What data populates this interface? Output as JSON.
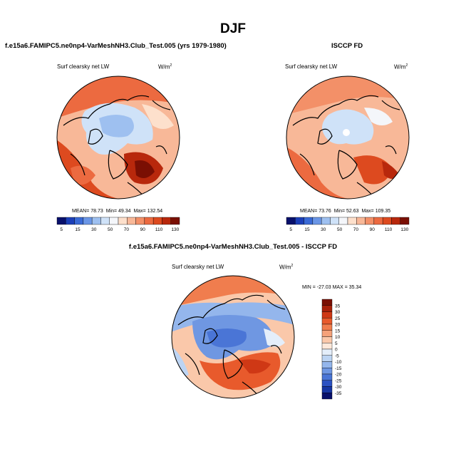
{
  "page": {
    "title": "DJF",
    "bottom_title": "f.e15a6.FAMIPC5.ne0np4-VarMeshNH3.Club_Test.005 - ISCCP FD"
  },
  "panels": {
    "model": {
      "header": "f.e15a6.FAMIPC5.ne0np4-VarMeshNH3.Club_Test.005 (yrs 1979-1980)",
      "field": "Surf clearsky net LW",
      "unit_base": "W/m",
      "unit_exp": "2",
      "stats": {
        "mean_label": "MEAN=",
        "mean": "78.73",
        "min_label": "Min=",
        "min": "49.34",
        "max_label": "Max=",
        "max": "132.54"
      }
    },
    "obs": {
      "header": "ISCCP FD",
      "field": "Surf clearsky net LW",
      "unit_base": "W/m",
      "unit_exp": "2",
      "stats": {
        "mean_label": "MEAN=",
        "mean": "73.76",
        "min_label": "Min=",
        "min": "52.63",
        "max_label": "Max=",
        "max": "109.35"
      }
    },
    "diff": {
      "field": "Surf clearsky net LW",
      "unit_base": "W/m",
      "unit_exp": "2",
      "minmax": "MIN = -27.03 MAX =  35.34"
    }
  },
  "colorbar_abs": {
    "labels": [
      "5",
      "15",
      "30",
      "50",
      "70",
      "90",
      "110",
      "130"
    ],
    "colors": [
      "#08106b",
      "#1c3fb8",
      "#3a6ad6",
      "#6b96e6",
      "#9ec0f0",
      "#cfe2f8",
      "#f4f6fa",
      "#fde0cc",
      "#f8b898",
      "#f39068",
      "#ec6a40",
      "#dd4a1f",
      "#b8280c",
      "#7a0f03"
    ]
  },
  "colorbar_diff": {
    "labels": [
      "35",
      "30",
      "25",
      "20",
      "15",
      "10",
      "5",
      "0",
      "-5",
      "-10",
      "-15",
      "-20",
      "-25",
      "-30",
      "-35"
    ],
    "colors": [
      "#7a0f03",
      "#a8200a",
      "#cf3815",
      "#e85a2c",
      "#f07d4e",
      "#f5a27a",
      "#fac8aa",
      "#fde8da",
      "#e4eefa",
      "#bcd4f3",
      "#94b6ec",
      "#6f97e2",
      "#4a75d6",
      "#2c52c2",
      "#1636a3",
      "#08106b"
    ]
  }
}
